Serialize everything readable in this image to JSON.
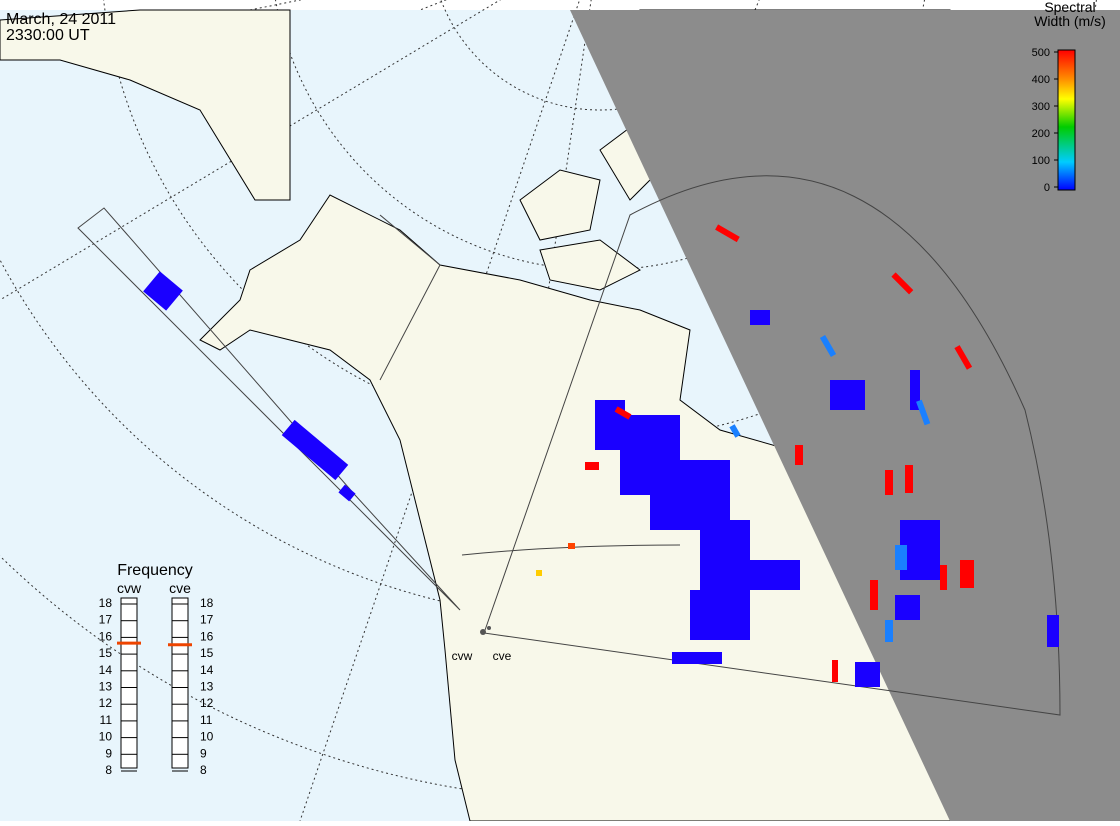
{
  "header": {
    "date": "March, 24 2011",
    "time": "2330:00 UT"
  },
  "colorbar": {
    "title": [
      "Spectral",
      "Width (m/s)"
    ],
    "ticks": [
      500,
      400,
      300,
      200,
      100,
      0
    ]
  },
  "frequency": {
    "title": "Frequency",
    "ticks": [
      18,
      17,
      16,
      15,
      14,
      13,
      12,
      11,
      10,
      9,
      8
    ],
    "radars": [
      {
        "name": "cvw",
        "value": 15.6
      },
      {
        "name": "cve",
        "value": 15.5
      }
    ]
  },
  "stations": [
    "cvw",
    "cve"
  ]
}
